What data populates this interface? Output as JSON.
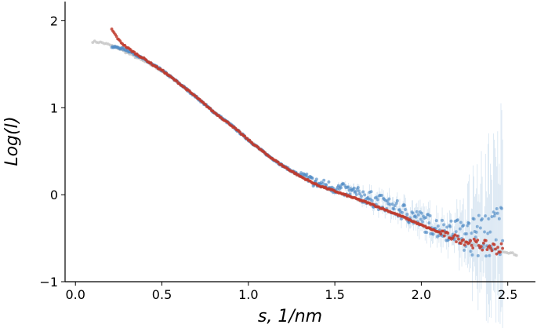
{
  "chart_data": {
    "type": "scatter",
    "title": "",
    "xlabel": "s, 1/nm",
    "ylabel": "Log(I)",
    "xlim": [
      -0.06,
      2.66
    ],
    "ylim": [
      -1.0,
      2.22
    ],
    "grid": false,
    "legend": "none",
    "x_ticks": [
      0.0,
      0.5,
      1.0,
      1.5,
      2.0,
      2.5
    ],
    "x_tick_labels": [
      "0.0",
      "0.5",
      "1.0",
      "1.5",
      "2.0",
      "2.5"
    ],
    "y_ticks": [
      -1,
      0,
      1,
      2
    ],
    "y_tick_labels": [
      "−1",
      "0",
      "1",
      "2"
    ],
    "series": [
      {
        "kind": "gray-model-curve",
        "color": "#c8c8c8",
        "x": [
          0.1,
          0.15,
          0.2,
          0.25,
          0.3,
          0.35,
          0.4,
          0.45,
          0.5,
          0.6,
          0.7,
          0.8,
          0.9,
          1.0,
          1.1,
          1.2,
          1.3,
          1.4,
          1.5,
          1.6,
          1.7,
          1.8,
          1.9,
          2.0,
          2.1,
          2.2,
          2.3,
          2.4,
          2.5,
          2.55
        ],
        "y": [
          1.76,
          1.75,
          1.72,
          1.68,
          1.63,
          1.58,
          1.53,
          1.48,
          1.42,
          1.28,
          1.12,
          0.95,
          0.8,
          0.63,
          0.47,
          0.33,
          0.21,
          0.11,
          0.04,
          -0.03,
          -0.1,
          -0.18,
          -0.26,
          -0.35,
          -0.43,
          -0.5,
          -0.57,
          -0.62,
          -0.66,
          -0.69
        ]
      },
      {
        "kind": "blue-experimental-points",
        "color": "#4f8bc4",
        "x": [
          0.21,
          0.25,
          0.3,
          0.35,
          0.4,
          0.45,
          0.5,
          0.6,
          0.7,
          0.8,
          0.9,
          1.0,
          1.1,
          1.2,
          1.3,
          1.4,
          1.5,
          1.6,
          1.7,
          1.8,
          1.9,
          2.0,
          2.1,
          2.2,
          2.3,
          2.4,
          2.47
        ],
        "y": [
          1.7,
          1.69,
          1.66,
          1.61,
          1.55,
          1.49,
          1.43,
          1.28,
          1.12,
          0.95,
          0.8,
          0.63,
          0.47,
          0.33,
          0.22,
          0.13,
          0.08,
          0.03,
          -0.04,
          -0.12,
          -0.2,
          -0.3,
          -0.38,
          -0.43,
          -0.48,
          -0.45,
          -0.42
        ]
      },
      {
        "kind": "red-fit-curve",
        "color": "#c0392b",
        "x": [
          0.21,
          0.23,
          0.25,
          0.28,
          0.3,
          0.35,
          0.4,
          0.45,
          0.5,
          0.6,
          0.7,
          0.8,
          0.9,
          1.0,
          1.1,
          1.2,
          1.3,
          1.4,
          1.5,
          1.6,
          1.7,
          1.8,
          1.9,
          2.0,
          2.1,
          2.2,
          2.3,
          2.4,
          2.47
        ],
        "y": [
          1.9,
          1.84,
          1.78,
          1.72,
          1.69,
          1.62,
          1.56,
          1.49,
          1.43,
          1.28,
          1.12,
          0.95,
          0.8,
          0.63,
          0.47,
          0.33,
          0.21,
          0.11,
          0.04,
          -0.03,
          -0.1,
          -0.18,
          -0.26,
          -0.35,
          -0.43,
          -0.5,
          -0.56,
          -0.6,
          -0.63
        ]
      }
    ]
  }
}
